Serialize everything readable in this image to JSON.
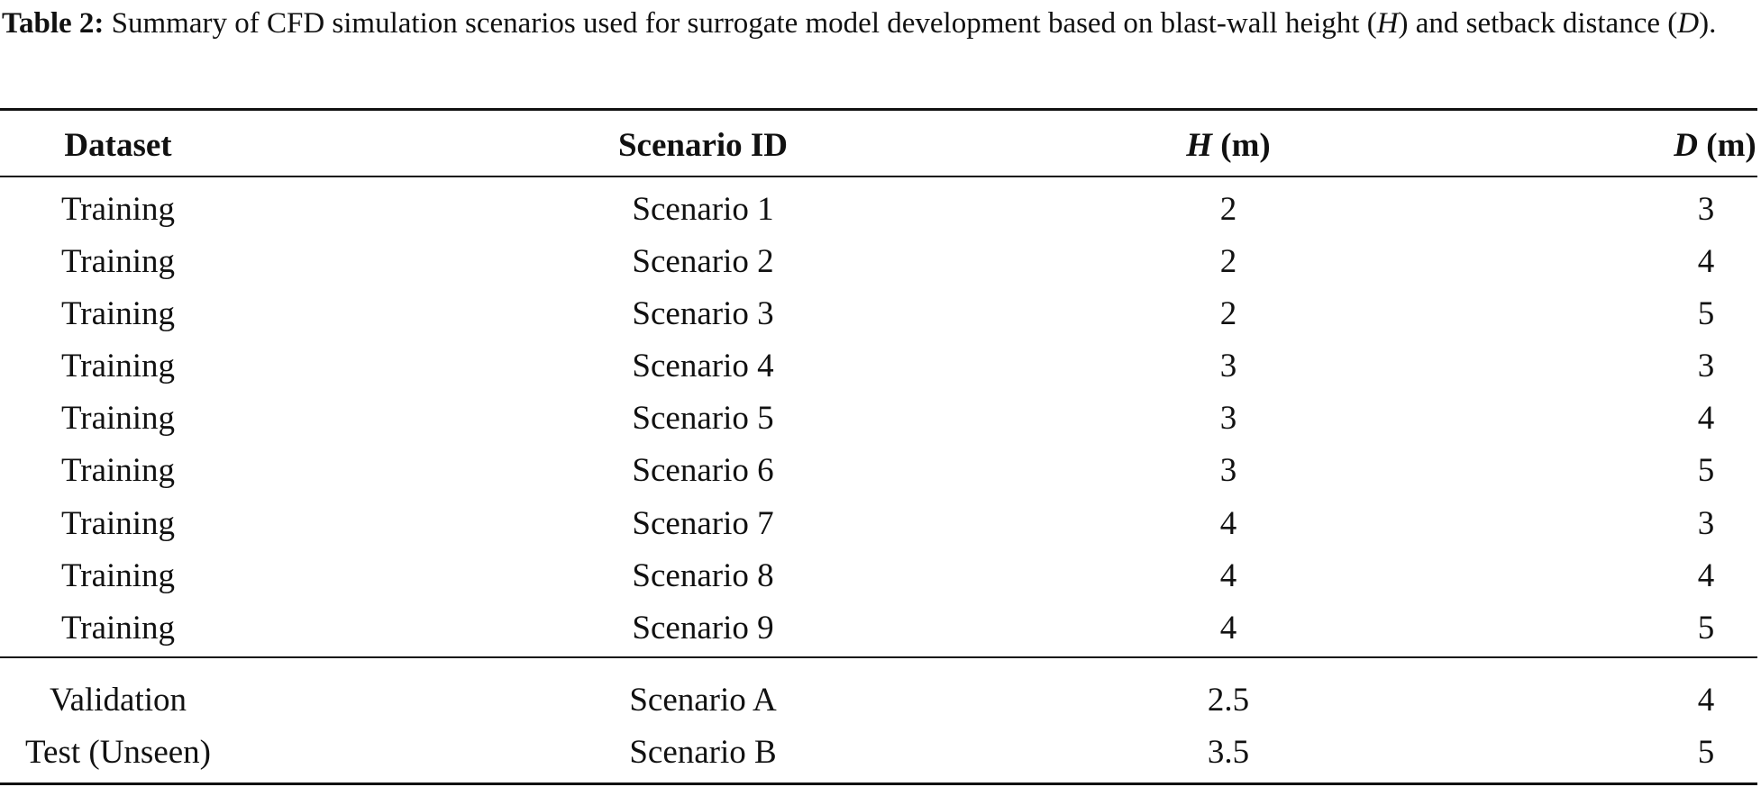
{
  "caption": {
    "label": "Table 2:",
    "parts": [
      "Summary of CFD simulation scenarios used for surrogate model development based on blast-wall height (",
      "H",
      ") and setback distance (",
      "D",
      ")."
    ]
  },
  "table": {
    "headers": [
      "Dataset",
      "Scenario ID",
      {
        "symbol": "H",
        "unit": "(m)"
      },
      {
        "symbol": "D",
        "unit": "(m)"
      }
    ],
    "rows": [
      [
        "Training",
        "Scenario 1",
        2,
        3
      ],
      [
        "Training",
        "Scenario 2",
        2,
        4
      ],
      [
        "Training",
        "Scenario 3",
        2,
        5
      ],
      [
        "Training",
        "Scenario 4",
        3,
        3
      ],
      [
        "Training",
        "Scenario 5",
        3,
        4
      ],
      [
        "Training",
        "Scenario 6",
        3,
        5
      ],
      [
        "Training",
        "Scenario 7",
        4,
        3
      ],
      [
        "Training",
        "Scenario 8",
        4,
        4
      ],
      [
        "Training",
        "Scenario 9",
        4,
        5
      ],
      [
        "Validation",
        "Scenario A",
        2.5,
        4
      ],
      [
        "Test (Unseen)",
        "Scenario B",
        3.5,
        5
      ]
    ]
  }
}
